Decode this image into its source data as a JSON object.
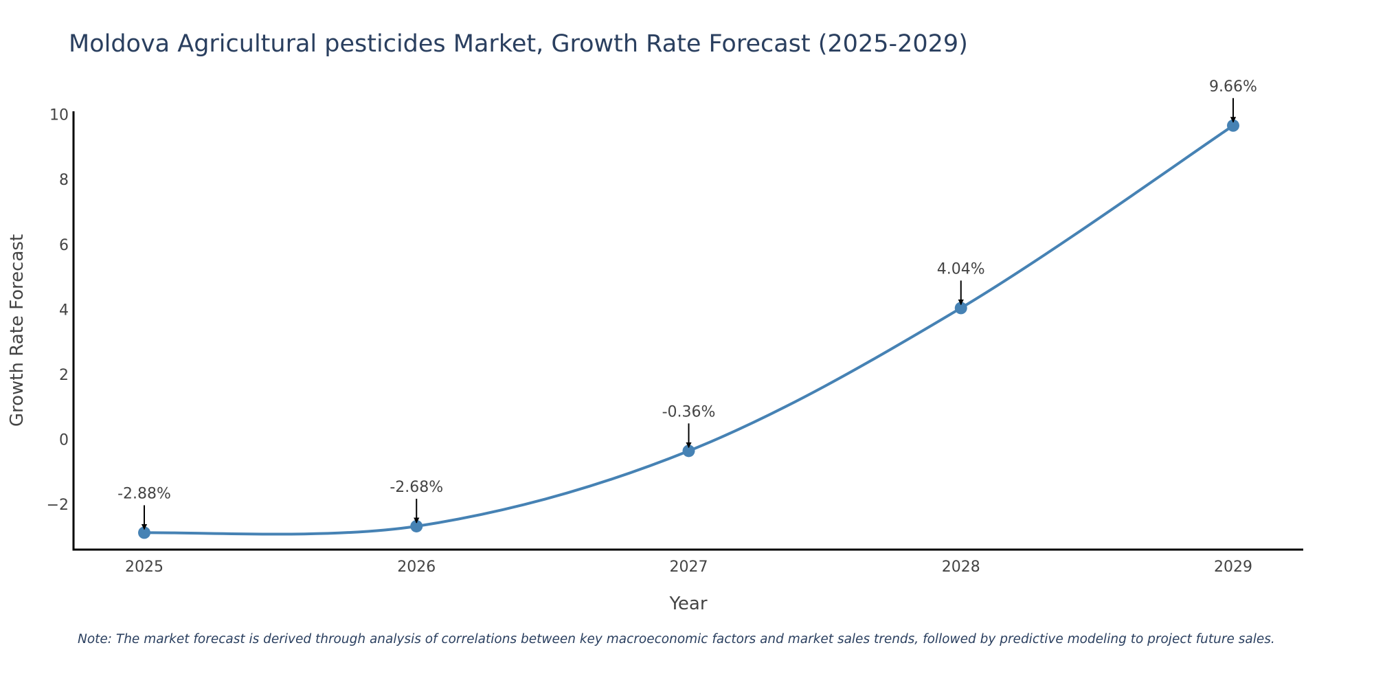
{
  "chart_data": {
    "type": "line",
    "title": "Moldova Agricultural pesticides Market, Growth Rate Forecast (2025-2029)",
    "xlabel": "Year",
    "ylabel": "Growth Rate Forecast",
    "categories": [
      "2025",
      "2026",
      "2027",
      "2028",
      "2029"
    ],
    "series": [
      {
        "name": "Growth Rate Forecast",
        "values": [
          -2.88,
          -2.68,
          -0.36,
          4.04,
          9.66
        ],
        "labels": [
          "-2.88%",
          "-2.68%",
          "-0.36%",
          "4.04%",
          "9.66%"
        ]
      }
    ],
    "ylim": [
      -3.4,
      10.1
    ],
    "yticks": [
      -2,
      0,
      2,
      4,
      6,
      8,
      10
    ],
    "ytick_labels": [
      "−2",
      "0",
      "2",
      "4",
      "6",
      "8",
      "10"
    ],
    "grid": false,
    "line_shape": "spline",
    "colors": {
      "line": "#4682b4",
      "marker": "#4682b4",
      "arrow": "#000000",
      "axis": "#000000",
      "title": "#2a3f5f"
    }
  },
  "note": "Note: The market forecast is derived through analysis of correlations between key macroeconomic factors and market sales trends, followed by predictive modeling to project future sales."
}
